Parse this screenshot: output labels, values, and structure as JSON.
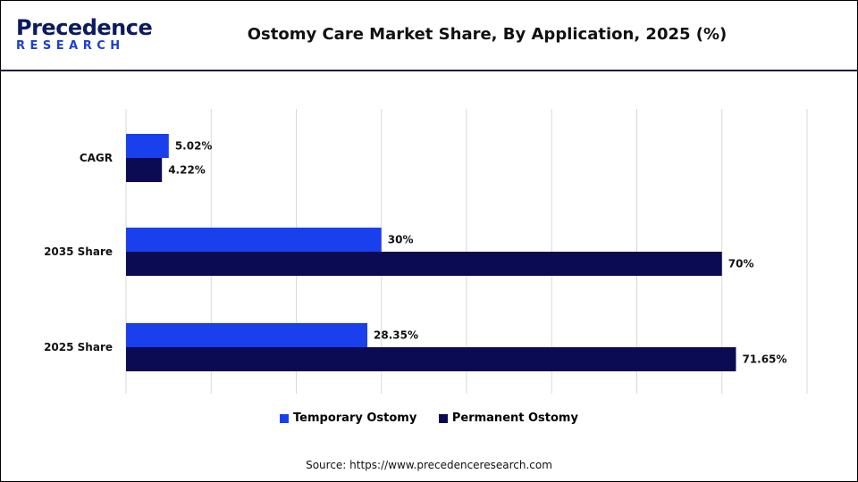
{
  "header": {
    "logo_top": "Precedence",
    "logo_bottom": "RESEARCH",
    "title": "Ostomy Care Market Share, By Application, 2025 (%)"
  },
  "footer": {
    "source": "Source: https://www.precedenceresearch.com"
  },
  "chart_data": {
    "type": "bar",
    "orientation": "horizontal",
    "title": "Ostomy Care Market Share, By Application, 2025 (%)",
    "categories": [
      "CAGR",
      "2035 Share",
      "2025 Share"
    ],
    "series": [
      {
        "name": "Temporary Ostomy",
        "values": [
          5.02,
          30,
          28.35
        ],
        "labels": [
          "5.02%",
          "30%",
          "28.35%"
        ],
        "color": "#1a40ee"
      },
      {
        "name": "Permanent Ostomy",
        "values": [
          4.22,
          70,
          71.65
        ],
        "labels": [
          "4.22%",
          "70%",
          "71.65%"
        ],
        "color": "#0a0b52"
      }
    ],
    "xlim": [
      0,
      80
    ],
    "grid": true,
    "legend_position": "bottom"
  }
}
